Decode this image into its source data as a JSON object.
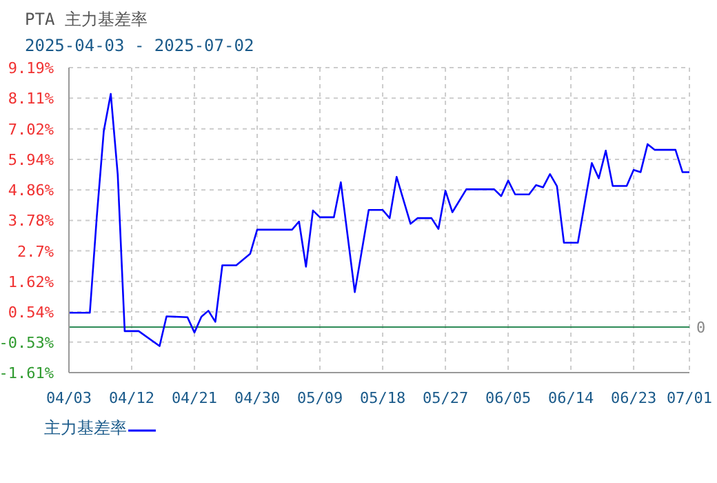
{
  "chart_data": {
    "type": "line",
    "title": "PTA  主力基差率",
    "subtitle": "2025-04-03 - 2025-07-02",
    "x": [
      "2025-04-03",
      "2025-04-06",
      "2025-04-07",
      "2025-04-08",
      "2025-04-09",
      "2025-04-10",
      "2025-04-11",
      "2025-04-13",
      "2025-04-16",
      "2025-04-17",
      "2025-04-20",
      "2025-04-21",
      "2025-04-22",
      "2025-04-23",
      "2025-04-24",
      "2025-04-25",
      "2025-04-27",
      "2025-04-29",
      "2025-04-30",
      "2025-05-05",
      "2025-05-06",
      "2025-05-07",
      "2025-05-08",
      "2025-05-09",
      "2025-05-11",
      "2025-05-12",
      "2025-05-14",
      "2025-05-16",
      "2025-05-18",
      "2025-05-19",
      "2025-05-20",
      "2025-05-22",
      "2025-05-23",
      "2025-05-25",
      "2025-05-26",
      "2025-05-27",
      "2025-05-28",
      "2025-05-30",
      "2025-06-03",
      "2025-06-04",
      "2025-06-05",
      "2025-06-06",
      "2025-06-08",
      "2025-06-09",
      "2025-06-10",
      "2025-06-11",
      "2025-06-12",
      "2025-06-13",
      "2025-06-15",
      "2025-06-16",
      "2025-06-17",
      "2025-06-18",
      "2025-06-19",
      "2025-06-20",
      "2025-06-22",
      "2025-06-23",
      "2025-06-24",
      "2025-06-25",
      "2025-06-26",
      "2025-06-29",
      "2025-06-30",
      "2025-07-01"
    ],
    "series": [
      {
        "name": "主力基差率",
        "color": "#0000ff",
        "values": [
          0.51,
          0.51,
          3.93,
          6.95,
          8.26,
          5.4,
          -0.14,
          -0.14,
          -0.67,
          0.38,
          0.35,
          -0.19,
          0.37,
          0.58,
          0.19,
          2.19,
          2.19,
          2.6,
          3.45,
          3.45,
          3.74,
          2.14,
          4.13,
          3.89,
          3.89,
          5.13,
          1.24,
          4.15,
          4.15,
          3.86,
          5.32,
          3.66,
          3.86,
          3.86,
          3.48,
          4.83,
          4.07,
          4.88,
          4.88,
          4.64,
          5.19,
          4.7,
          4.7,
          5.03,
          4.95,
          5.42,
          4.99,
          2.99,
          2.99,
          4.42,
          5.81,
          5.27,
          6.25,
          5.0,
          5.0,
          5.57,
          5.49,
          6.48,
          6.28,
          6.28,
          5.49,
          5.49
        ]
      }
    ],
    "xlim": [
      "2025-04-03",
      "2025-07-01"
    ],
    "xticks": [
      {
        "value": "2025-04-03",
        "label": "04/03"
      },
      {
        "value": "2025-04-12",
        "label": "04/12"
      },
      {
        "value": "2025-04-21",
        "label": "04/21"
      },
      {
        "value": "2025-04-30",
        "label": "04/30"
      },
      {
        "value": "2025-05-09",
        "label": "05/09"
      },
      {
        "value": "2025-05-18",
        "label": "05/18"
      },
      {
        "value": "2025-05-27",
        "label": "05/27"
      },
      {
        "value": "2025-06-05",
        "label": "06/05"
      },
      {
        "value": "2025-06-14",
        "label": "06/14"
      },
      {
        "value": "2025-06-23",
        "label": "06/23"
      },
      {
        "value": "2025-07-01",
        "label": "07/01"
      }
    ],
    "ylim": [
      -1.61,
      9.19
    ],
    "yticks": [
      {
        "value": -1.61,
        "label": "-1.61%"
      },
      {
        "value": -0.53,
        "label": "-0.53%"
      },
      {
        "value": 0.54,
        "label": "0.54%"
      },
      {
        "value": 1.62,
        "label": "1.62%"
      },
      {
        "value": 2.7,
        "label": "2.7%"
      },
      {
        "value": 3.78,
        "label": "3.78%"
      },
      {
        "value": 4.86,
        "label": "4.86%"
      },
      {
        "value": 5.94,
        "label": "5.94%"
      },
      {
        "value": 7.02,
        "label": "7.02%"
      },
      {
        "value": 8.11,
        "label": "8.11%"
      },
      {
        "value": 9.19,
        "label": "9.19%"
      }
    ],
    "ref_lines": [
      {
        "axis": "y",
        "value": 0,
        "label": "0",
        "color": "#2e8b57"
      }
    ],
    "grid": true,
    "legend": "bottom left",
    "marker": "none",
    "line_style": "solid"
  }
}
